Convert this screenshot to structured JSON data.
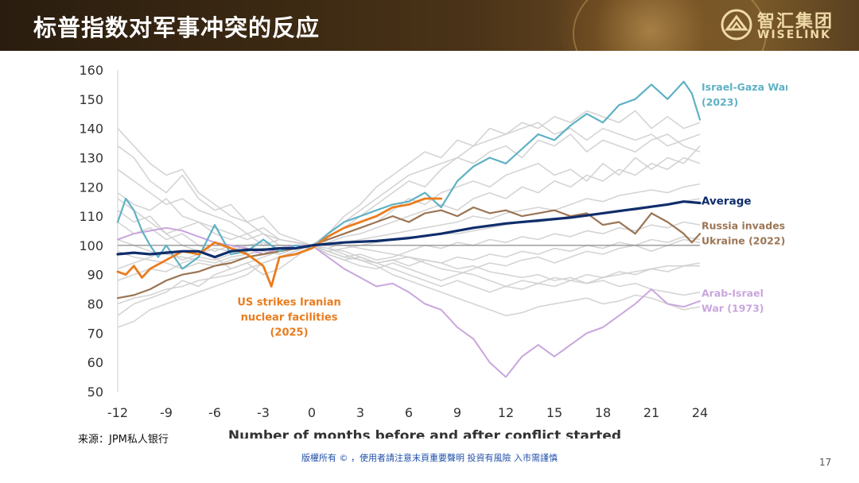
{
  "header": {
    "title": "标普指数对军事冲突的反应",
    "logo_cn": "智汇集团",
    "logo_en": "WISELINK"
  },
  "source": "来源：JPM私人银行",
  "footer": "版權所有 © ，使用者請注意末頁重要聲明 投資有風險 入市需謹慎",
  "page_number": "17",
  "colors": {
    "israel_gaza": "#5fb1c4",
    "average": "#0f2d6b",
    "russia": "#9b7554",
    "arab_israel": "#c9a6dd",
    "us_iran": "#ea7c1e",
    "background_series": "#cfcfcf",
    "baseline": "#888888"
  },
  "chart_data": {
    "type": "line",
    "title": "",
    "xlabel": "Number of months before and after conflict started",
    "ylabel": "",
    "xlim": [
      -12,
      24
    ],
    "ylim": [
      50,
      160
    ],
    "x_ticks": [
      -12,
      -9,
      -6,
      -3,
      0,
      3,
      6,
      9,
      12,
      15,
      18,
      21,
      24
    ],
    "y_ticks": [
      50,
      60,
      70,
      80,
      90,
      100,
      110,
      120,
      130,
      140,
      150,
      160
    ],
    "baseline": 100,
    "series": [
      {
        "name": "Israel-Gaza War (2023)",
        "label_lines": [
          "Israel-Gaza War",
          "(2023)"
        ],
        "color": "#5fb1c4",
        "width": 2.2,
        "x": [
          -12,
          -11.5,
          -11,
          -10.5,
          -10,
          -9.5,
          -9,
          -8,
          -7,
          -6,
          -5,
          -4,
          -3,
          -2,
          -1,
          0,
          1,
          2,
          3,
          4,
          5,
          6,
          7,
          8,
          9,
          10,
          11,
          12,
          13,
          14,
          15,
          16,
          17,
          18,
          19,
          20,
          21,
          22,
          23,
          23.5,
          24
        ],
        "y": [
          108,
          116,
          112,
          105,
          100,
          96,
          100,
          92,
          96,
          107,
          97,
          98,
          102,
          98,
          100,
          99,
          104,
          108,
          110,
          112,
          114,
          115,
          118,
          113,
          122,
          127,
          130,
          128,
          133,
          138,
          136,
          141,
          145,
          142,
          148,
          150,
          155,
          150,
          156,
          152,
          143
        ]
      },
      {
        "name": "Average",
        "label_lines": [
          "Average"
        ],
        "color": "#0f2d6b",
        "width": 3.2,
        "x": [
          -12,
          -11,
          -10,
          -9,
          -8,
          -7,
          -6,
          -5,
          -4,
          -3,
          -2,
          -1,
          0,
          2,
          4,
          6,
          8,
          10,
          12,
          14,
          16,
          18,
          20,
          22,
          23,
          24
        ],
        "y": [
          97,
          97.5,
          97,
          97.5,
          98,
          98,
          96,
          98,
          98.5,
          98.5,
          99,
          99,
          100,
          101,
          101.5,
          102.5,
          104,
          106,
          107.5,
          108.5,
          109.5,
          111,
          112.5,
          114,
          115,
          114.5
        ]
      },
      {
        "name": "Russia invades Ukraine (2022)",
        "label_lines": [
          "Russia invades",
          "Ukraine (2022)"
        ],
        "color": "#9b7554",
        "width": 2.2,
        "x": [
          -12,
          -11,
          -10,
          -9,
          -8,
          -7,
          -6,
          -5,
          -4,
          -3,
          -2,
          -1,
          0,
          1,
          2,
          3,
          4,
          5,
          6,
          7,
          8,
          9,
          10,
          11,
          12,
          13,
          14,
          15,
          16,
          17,
          18,
          19,
          20,
          21,
          22,
          23,
          23.5,
          24
        ],
        "y": [
          82,
          83,
          85,
          88,
          90,
          91,
          93,
          94,
          96,
          97,
          98,
          99,
          100,
          102,
          104,
          106,
          108,
          110,
          108,
          111,
          112,
          110,
          113,
          111,
          112,
          110,
          111,
          112,
          110,
          111,
          107,
          108,
          104,
          111,
          108,
          104,
          101,
          104
        ]
      },
      {
        "name": "Arab-Israel War (1973)",
        "label_lines": [
          "Arab-Israel",
          "War (1973)"
        ],
        "color": "#c9a6dd",
        "width": 2,
        "x": [
          -12,
          -11,
          -10,
          -9,
          -8,
          -7,
          -6,
          -5,
          -4,
          -3,
          -2,
          -1,
          0,
          1,
          2,
          3,
          4,
          5,
          6,
          7,
          8,
          9,
          10,
          11,
          12,
          13,
          14,
          15,
          16,
          17,
          18,
          19,
          20,
          21,
          22,
          23,
          24
        ],
        "y": [
          102,
          104,
          105,
          106,
          105,
          103,
          101,
          100,
          99,
          97,
          99,
          100,
          100,
          96,
          92,
          89,
          86,
          87,
          84,
          80,
          78,
          72,
          68,
          60,
          55,
          62,
          66,
          62,
          66,
          70,
          72,
          76,
          80,
          85,
          80,
          79,
          81
        ]
      },
      {
        "name": "US strikes Iranian nuclear facilities (2025)",
        "label_lines": [
          "US strikes Iranian",
          "nuclear facilities",
          "(2025)"
        ],
        "color": "#ea7c1e",
        "width": 2.8,
        "x": [
          -12,
          -11.5,
          -11,
          -10.5,
          -10,
          -9,
          -8,
          -7,
          -6,
          -5,
          -4,
          -3.5,
          -3,
          -2.5,
          -2,
          -1,
          0,
          0.5,
          1,
          2,
          3,
          4,
          5,
          6,
          7,
          8
        ],
        "y": [
          91,
          90,
          93,
          89,
          92,
          95,
          98,
          97,
          101,
          99,
          97,
          95,
          93,
          86,
          96,
          97,
          99,
          101,
          103,
          106,
          108,
          110,
          113,
          114,
          116,
          116
        ]
      }
    ],
    "background_series": [
      [
        134,
        130,
        122,
        118,
        124,
        116,
        112,
        114,
        108,
        110,
        104,
        102,
        100,
        104,
        108,
        112,
        116,
        120,
        124,
        126,
        128,
        130,
        134,
        136,
        138,
        140,
        142,
        138,
        140,
        136,
        140,
        138,
        136,
        138,
        134,
        136,
        138
      ],
      [
        126,
        122,
        118,
        114,
        116,
        112,
        110,
        108,
        104,
        106,
        102,
        101,
        100,
        103,
        106,
        110,
        114,
        118,
        122,
        120,
        126,
        130,
        128,
        132,
        134,
        130,
        136,
        134,
        138,
        132,
        136,
        134,
        132,
        136,
        138,
        134,
        132
      ],
      [
        118,
        114,
        112,
        116,
        110,
        108,
        106,
        104,
        102,
        104,
        100,
        99,
        100,
        102,
        104,
        106,
        108,
        112,
        116,
        114,
        118,
        120,
        122,
        120,
        124,
        126,
        128,
        124,
        126,
        122,
        128,
        124,
        130,
        126,
        130,
        128,
        134
      ],
      [
        112,
        108,
        110,
        104,
        106,
        108,
        104,
        102,
        104,
        100,
        102,
        101,
        100,
        101,
        103,
        104,
        106,
        108,
        110,
        112,
        114,
        112,
        116,
        118,
        116,
        120,
        118,
        122,
        120,
        124,
        122,
        126,
        124,
        128,
        126,
        130,
        128
      ],
      [
        92,
        94,
        96,
        98,
        95,
        97,
        99,
        98,
        100,
        101,
        99,
        100,
        100,
        99,
        101,
        102,
        103,
        104,
        105,
        106,
        107,
        108,
        110,
        109,
        111,
        112,
        113,
        112,
        114,
        116,
        115,
        117,
        118,
        119,
        118,
        120,
        121
      ],
      [
        88,
        90,
        92,
        91,
        94,
        96,
        95,
        97,
        98,
        99,
        97,
        99,
        100,
        98,
        99,
        100,
        101,
        102,
        103,
        103,
        104,
        104,
        105,
        106,
        107,
        108,
        108,
        109,
        110,
        110,
        111,
        112,
        112,
        113,
        114,
        115,
        116
      ],
      [
        76,
        80,
        82,
        84,
        88,
        86,
        90,
        92,
        94,
        96,
        98,
        99,
        100,
        98,
        96,
        97,
        95,
        96,
        98,
        100,
        99,
        101,
        100,
        102,
        101,
        103,
        102,
        104,
        103,
        105,
        104,
        106,
        105,
        107,
        106,
        108,
        107
      ],
      [
        72,
        74,
        78,
        80,
        82,
        84,
        86,
        88,
        90,
        94,
        96,
        98,
        100,
        97,
        95,
        93,
        92,
        94,
        92,
        90,
        88,
        90,
        92,
        94,
        93,
        95,
        96,
        94,
        96,
        98,
        97,
        99,
        100,
        98,
        100,
        102,
        101
      ],
      [
        108,
        104,
        106,
        102,
        104,
        100,
        98,
        100,
        97,
        99,
        98,
        99,
        100,
        98,
        96,
        95,
        94,
        92,
        90,
        88,
        86,
        88,
        86,
        84,
        86,
        88,
        87,
        89,
        88,
        90,
        89,
        91,
        90,
        92,
        91,
        93,
        93
      ],
      [
        116,
        112,
        108,
        104,
        100,
        98,
        96,
        92,
        94,
        90,
        92,
        96,
        100,
        97,
        95,
        96,
        94,
        95,
        93,
        95,
        94,
        96,
        95,
        97,
        96,
        98,
        97,
        99,
        98,
        100,
        99,
        101,
        100,
        102,
        101,
        103,
        102
      ],
      [
        140,
        134,
        128,
        124,
        126,
        118,
        114,
        110,
        108,
        104,
        102,
        101,
        100,
        104,
        110,
        114,
        120,
        124,
        128,
        132,
        130,
        136,
        134,
        140,
        138,
        142,
        140,
        144,
        142,
        146,
        144,
        142,
        146,
        140,
        144,
        140,
        142
      ],
      [
        98,
        96,
        95,
        94,
        92,
        94,
        93,
        95,
        96,
        97,
        98,
        99,
        100,
        99,
        97,
        95,
        93,
        90,
        88,
        86,
        84,
        82,
        80,
        78,
        76,
        77,
        79,
        80,
        81,
        82,
        80,
        81,
        83,
        82,
        80,
        78,
        79
      ],
      [
        102,
        100,
        98,
        97,
        96,
        95,
        94,
        96,
        97,
        98,
        97,
        99,
        100,
        101,
        100,
        99,
        98,
        97,
        96,
        95,
        94,
        92,
        93,
        91,
        90,
        89,
        90,
        88,
        89,
        87,
        88,
        86,
        87,
        85,
        84,
        83,
        84
      ],
      [
        80,
        82,
        83,
        85,
        86,
        88,
        89,
        90,
        92,
        94,
        96,
        98,
        100,
        99,
        98,
        96,
        94,
        95,
        96,
        94,
        92,
        91,
        90,
        88,
        86,
        85,
        87,
        86,
        88,
        87,
        89,
        90,
        91,
        92,
        93,
        93,
        94
      ]
    ],
    "annotation": {
      "text_lines": [
        "US strikes Iranian",
        "nuclear facilities",
        "(2025)"
      ],
      "color": "#ea7c1e"
    }
  }
}
